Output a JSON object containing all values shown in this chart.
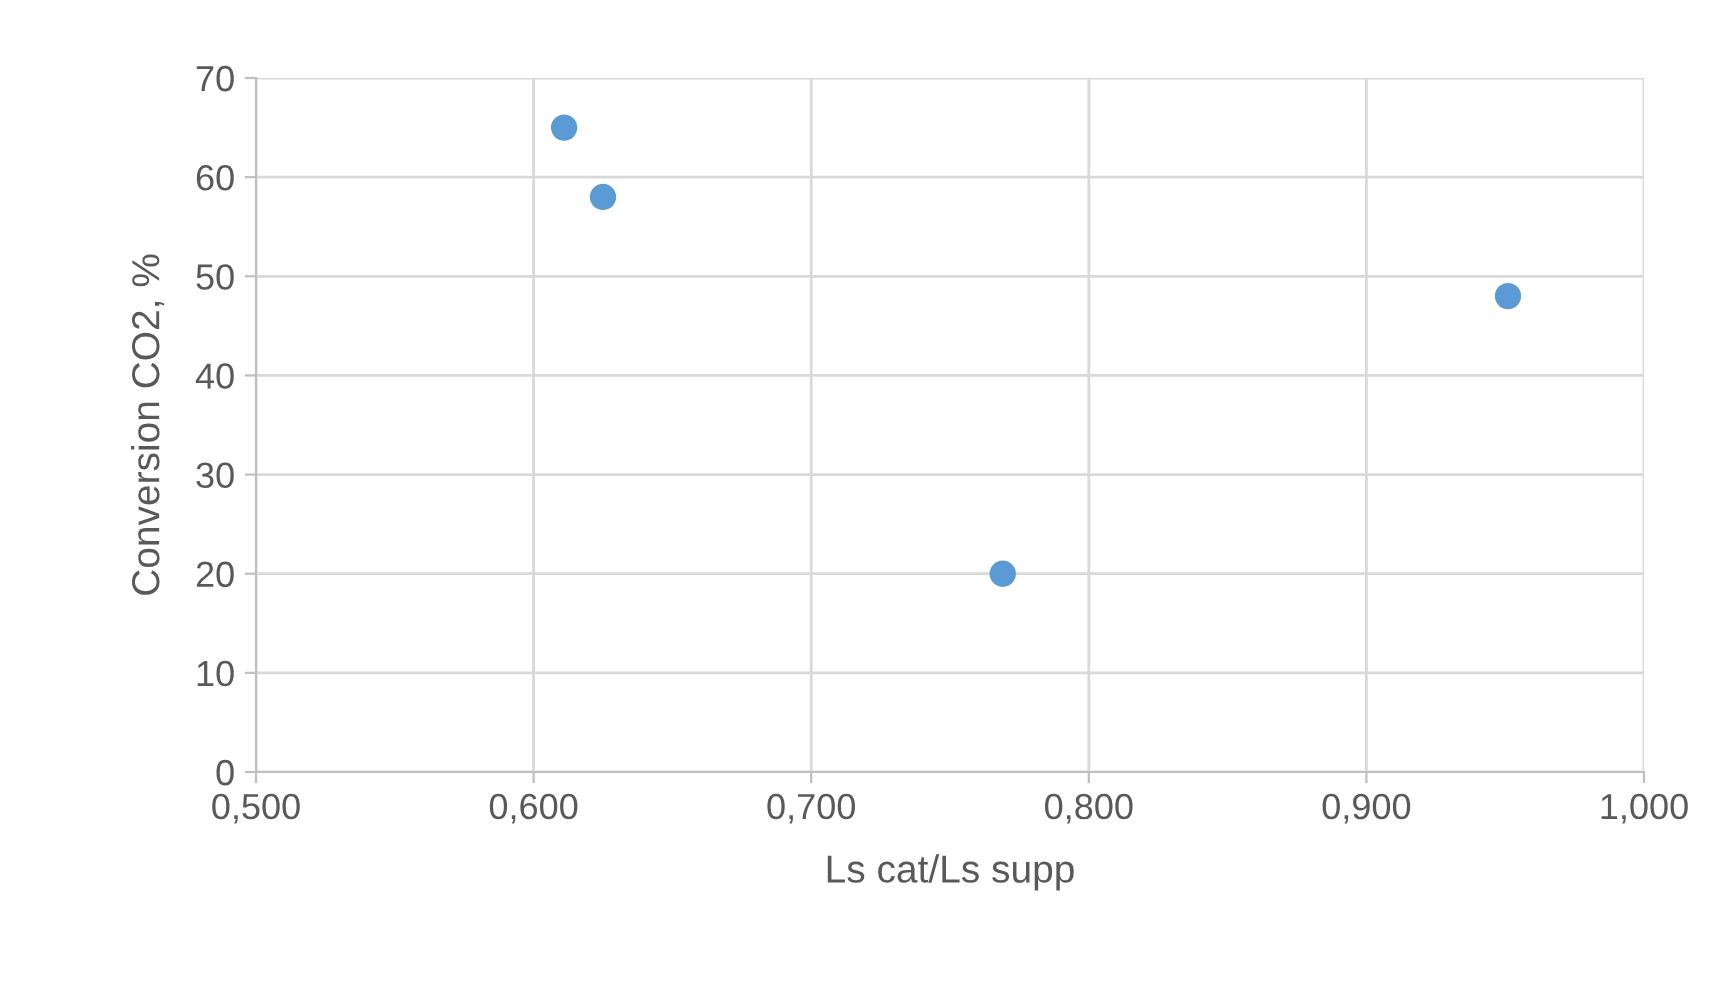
{
  "chart_data": {
    "type": "scatter",
    "xlabel": "Ls cat/Ls supp",
    "ylabel": "Conversion CO2, %",
    "x": [
      0.611,
      0.625,
      0.769,
      0.951
    ],
    "values": [
      65,
      58,
      20,
      48
    ],
    "color": "#5b9bd5",
    "marker": "circle",
    "grid": true,
    "xlim": [
      0.5,
      1.0
    ],
    "xticks": [
      {
        "value": 0.5,
        "label": "0,500"
      },
      {
        "value": 0.6,
        "label": "0,600"
      },
      {
        "value": 0.7,
        "label": "0,700"
      },
      {
        "value": 0.8,
        "label": "0,800"
      },
      {
        "value": 0.9,
        "label": "0,900"
      },
      {
        "value": 1.0,
        "label": "1,000"
      }
    ],
    "ylim": [
      0,
      70
    ],
    "yticks": [
      0,
      10,
      20,
      30,
      40,
      50,
      60,
      70
    ]
  }
}
